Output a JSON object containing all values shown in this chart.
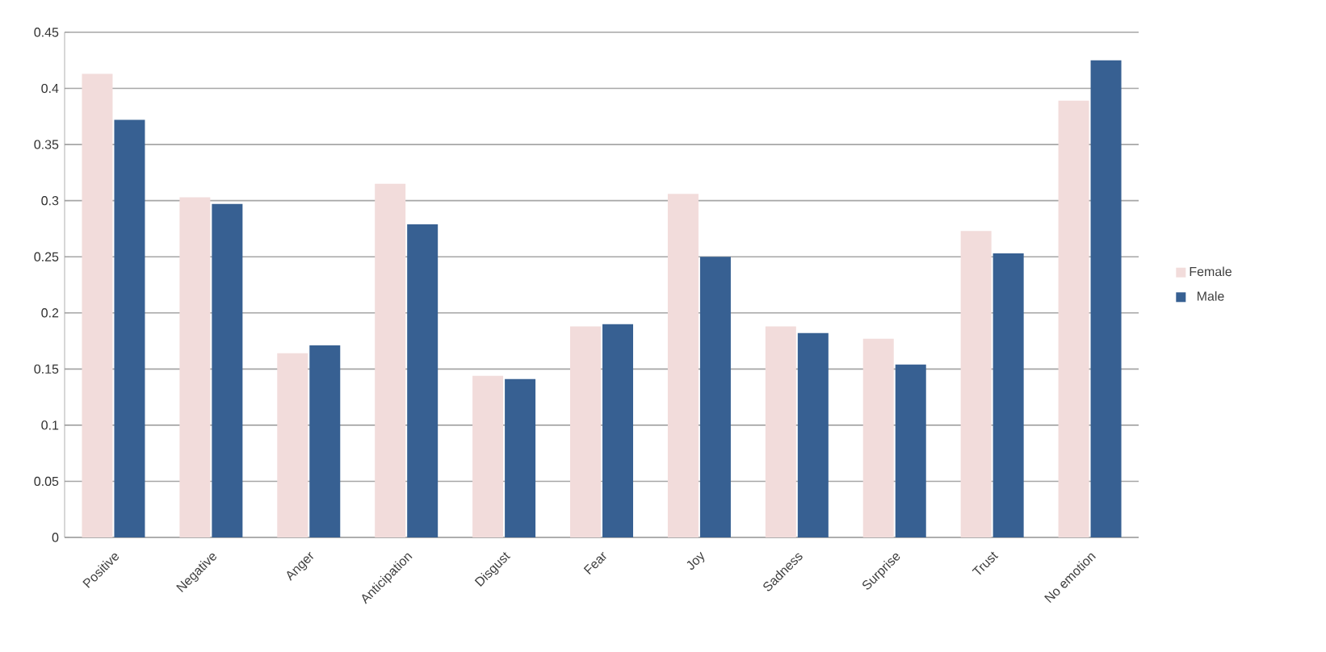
{
  "chart_data": {
    "type": "bar",
    "categories": [
      "Positive",
      "Negative",
      "Anger",
      "Anticipation",
      "Disgust",
      "Fear",
      "Joy",
      "Sadness",
      "Surprise",
      "Trust",
      "No emotion"
    ],
    "series": [
      {
        "name": "Female",
        "color": "#f2dcdb",
        "values": [
          0.413,
          0.303,
          0.164,
          0.315,
          0.144,
          0.188,
          0.306,
          0.188,
          0.177,
          0.273,
          0.389
        ]
      },
      {
        "name": "Male",
        "color": "#376092",
        "values": [
          0.372,
          0.297,
          0.171,
          0.279,
          0.141,
          0.19,
          0.25,
          0.182,
          0.154,
          0.253,
          0.425
        ]
      }
    ],
    "ylim": [
      0,
      0.45
    ],
    "yticks": [
      0,
      0.05,
      0.1,
      0.15,
      0.2,
      0.25,
      0.3,
      0.35,
      0.4,
      0.45
    ],
    "grid": "y",
    "legend": "right"
  }
}
